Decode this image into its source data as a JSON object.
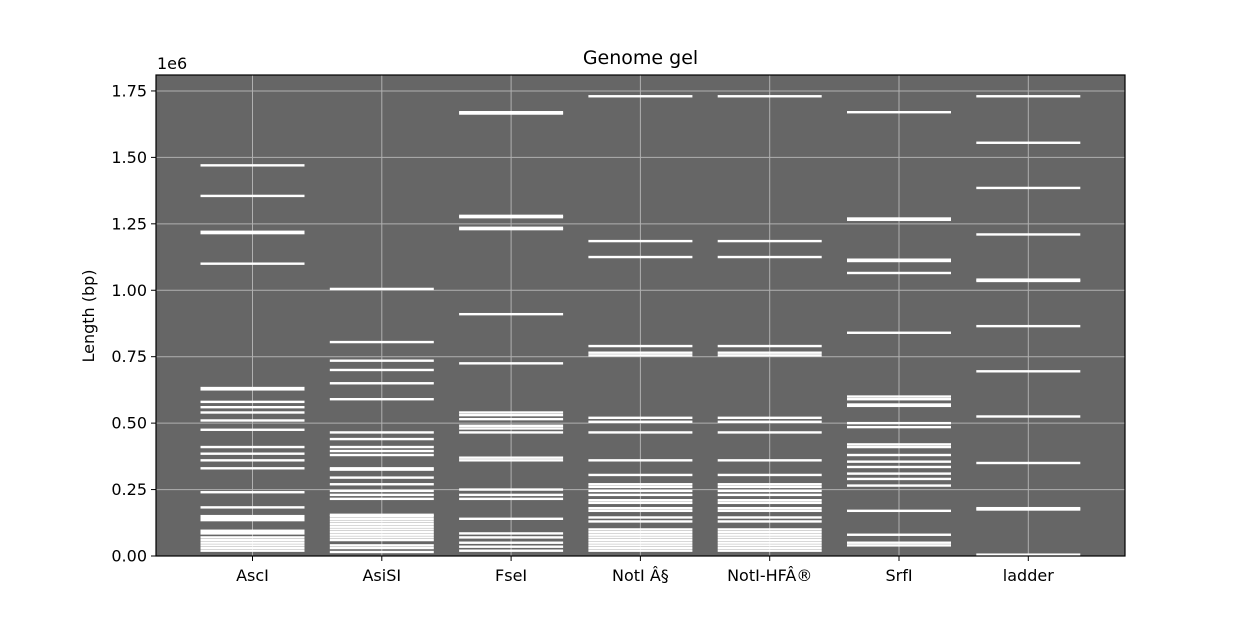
{
  "chart_data": {
    "type": "bar",
    "title": "Genome gel",
    "ylabel": "Length (bp)",
    "xlabel": "",
    "y_offset_label": "1e6",
    "ylim": [
      0,
      1.81
    ],
    "y_ticks": [
      0.0,
      0.25,
      0.5,
      0.75,
      1.0,
      1.25,
      1.5,
      1.75
    ],
    "y_tick_labels": [
      "0.00",
      "0.25",
      "0.50",
      "0.75",
      "1.00",
      "1.25",
      "1.50",
      "1.75"
    ],
    "grid": true,
    "categories": [
      "AscI",
      "AsiSI",
      "FseI",
      "NotI Â§",
      "NotI-HFÂ®",
      "SrfI",
      "ladder"
    ],
    "lanes": [
      {
        "name": "AscI",
        "bands": [
          1.47,
          1.355,
          1.22,
          1.215,
          1.1,
          0.632,
          0.627,
          0.58,
          0.56,
          0.54,
          0.51,
          0.475,
          0.41,
          0.385,
          0.36,
          0.33,
          0.24,
          0.183,
          0.15,
          0.145,
          0.14,
          0.135,
          0.095,
          0.09,
          0.085,
          0.07,
          0.06,
          0.05,
          0.04,
          0.03,
          0.02
        ]
      },
      {
        "name": "AsiSI",
        "bands": [
          1.005,
          0.805,
          0.735,
          0.7,
          0.65,
          0.59,
          0.465,
          0.44,
          0.41,
          0.395,
          0.38,
          0.33,
          0.325,
          0.295,
          0.27,
          0.245,
          0.23,
          0.215,
          0.155,
          0.15,
          0.14,
          0.13,
          0.12,
          0.11,
          0.1,
          0.09,
          0.08,
          0.07,
          0.06,
          0.04,
          0.03,
          0.015
        ]
      },
      {
        "name": "FseI",
        "bands": [
          1.67,
          1.665,
          1.28,
          1.275,
          1.235,
          1.23,
          0.91,
          0.725,
          0.54,
          0.53,
          0.515,
          0.49,
          0.48,
          0.465,
          0.37,
          0.36,
          0.25,
          0.23,
          0.215,
          0.14,
          0.085,
          0.07,
          0.05,
          0.035,
          0.02
        ]
      },
      {
        "name": "NotI Â§",
        "bands": [
          1.73,
          1.185,
          1.125,
          0.79,
          0.765,
          0.755,
          0.52,
          0.505,
          0.465,
          0.36,
          0.305,
          0.27,
          0.26,
          0.245,
          0.23,
          0.21,
          0.2,
          0.18,
          0.17,
          0.145,
          0.13,
          0.1,
          0.09,
          0.08,
          0.07,
          0.06,
          0.05,
          0.04,
          0.03,
          0.02
        ]
      },
      {
        "name": "NotI-HFÂ®",
        "bands": [
          1.73,
          1.185,
          1.125,
          0.79,
          0.765,
          0.755,
          0.52,
          0.505,
          0.465,
          0.36,
          0.305,
          0.27,
          0.26,
          0.245,
          0.23,
          0.21,
          0.2,
          0.18,
          0.17,
          0.145,
          0.13,
          0.1,
          0.09,
          0.08,
          0.07,
          0.06,
          0.05,
          0.04,
          0.03,
          0.02
        ]
      },
      {
        "name": "SrfI",
        "bands": [
          1.67,
          1.27,
          1.265,
          1.115,
          1.11,
          1.065,
          0.84,
          0.6,
          0.59,
          0.57,
          0.565,
          0.5,
          0.485,
          0.42,
          0.41,
          0.38,
          0.355,
          0.335,
          0.31,
          0.29,
          0.265,
          0.17,
          0.08,
          0.05,
          0.04
        ]
      },
      {
        "name": "ladder",
        "bands": [
          1.73,
          1.555,
          1.385,
          1.21,
          1.04,
          1.035,
          0.865,
          0.695,
          0.525,
          0.35,
          0.18,
          0.175,
          0.005
        ]
      }
    ],
    "colors": {
      "gel": "#666666",
      "band": "#ffffff",
      "grid": "#b0b0b0",
      "axes": "#000000"
    }
  }
}
